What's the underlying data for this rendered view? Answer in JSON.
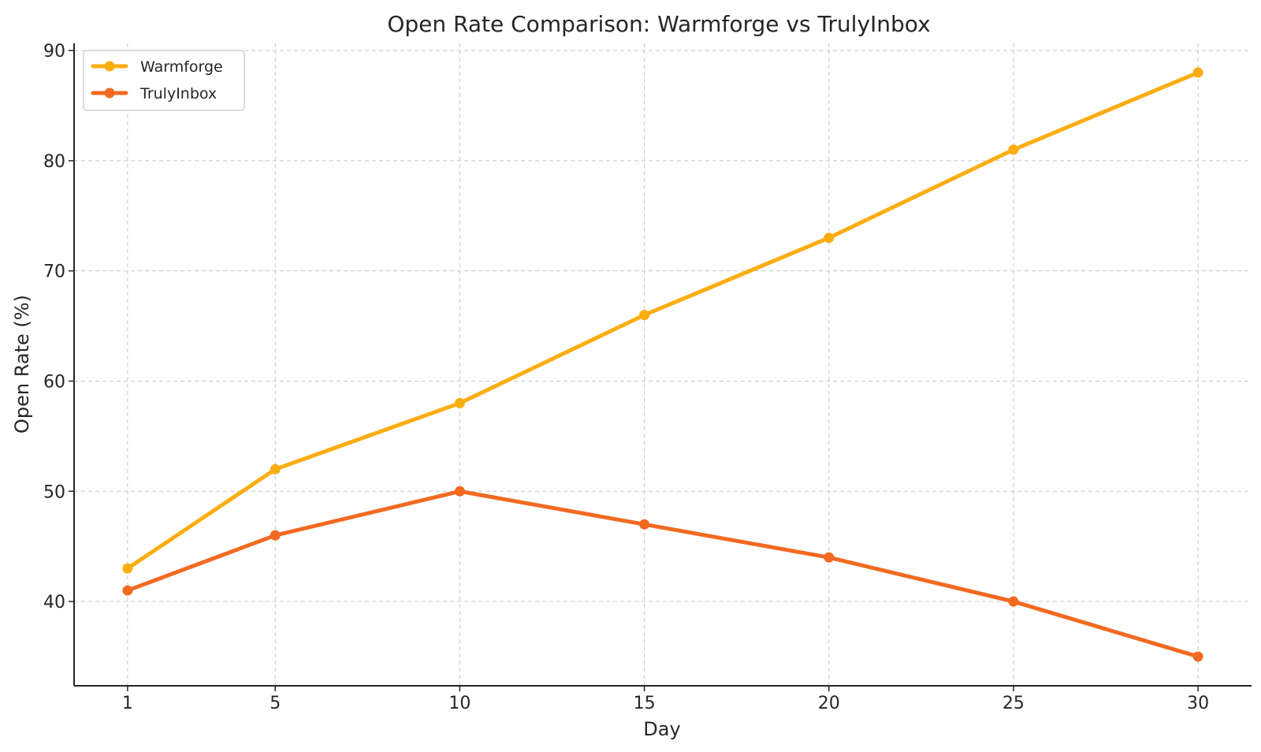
{
  "chart_data": {
    "type": "line",
    "title": "Open Rate Comparison: Warmforge vs TrulyInbox",
    "xlabel": "Day",
    "ylabel": "Open Rate (%)",
    "x": [
      1,
      5,
      10,
      15,
      20,
      25,
      30
    ],
    "xticks": [
      1,
      5,
      10,
      15,
      20,
      25,
      30
    ],
    "yticks": [
      40,
      50,
      60,
      70,
      80,
      90
    ],
    "xlim": [
      -0.45,
      31.45
    ],
    "ylim": [
      32.35,
      90.65
    ],
    "grid": true,
    "legend_position": "top-left",
    "series": [
      {
        "name": "Warmforge",
        "color": "#fbad10",
        "values": [
          43,
          52,
          58,
          66,
          73,
          81,
          88
        ]
      },
      {
        "name": "TrulyInbox",
        "color": "#f26a21",
        "values": [
          41,
          46,
          50,
          47,
          44,
          40,
          35
        ]
      }
    ]
  }
}
